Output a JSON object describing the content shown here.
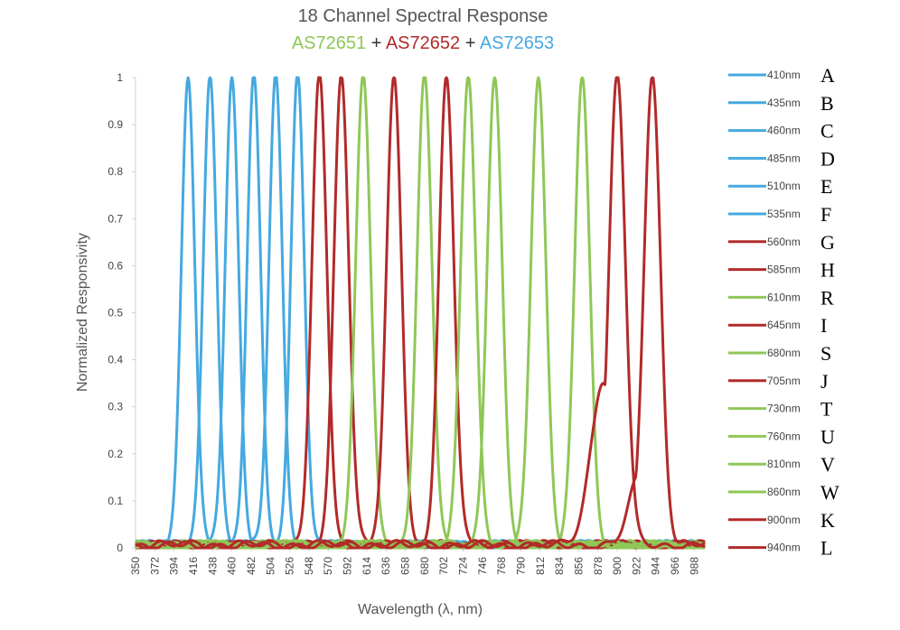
{
  "chart_data": {
    "type": "line",
    "title": "18 Channel Spectral Response",
    "subtitle_parts": [
      {
        "text": "AS72651",
        "color": "#8FC757"
      },
      {
        "text": " + ",
        "color": "#333333"
      },
      {
        "text": "AS72652",
        "color": "#B22A2A"
      },
      {
        "text": " + ",
        "color": "#333333"
      },
      {
        "text": "AS72653",
        "color": "#45A9E0"
      }
    ],
    "xlabel": "Wavelength (λ, nm)",
    "ylabel": "Normalized Responsivity",
    "xlim": [
      350,
      1000
    ],
    "ylim": [
      0,
      1
    ],
    "x_ticks": [
      "350",
      "372",
      "394",
      "416",
      "438",
      "460",
      "482",
      "504",
      "526",
      "548",
      "570",
      "592",
      "614",
      "636",
      "658",
      "680",
      "702",
      "724",
      "746",
      "768",
      "790",
      "812",
      "834",
      "856",
      "878",
      "900",
      "922",
      "944",
      "966",
      "988"
    ],
    "y_ticks": [
      "0",
      "0.1",
      "0.2",
      "0.3",
      "0.4",
      "0.5",
      "0.6",
      "0.7",
      "0.8",
      "0.9",
      "1"
    ],
    "grid": false,
    "legend_position": "right",
    "colors": {
      "AS72651": "#8FC757",
      "AS72652": "#B22A2A",
      "AS72653": "#45A9E0"
    },
    "series": [
      {
        "name": "410nm",
        "letter": "A",
        "sensor": "AS72653",
        "peak": 410,
        "fwhm": 18,
        "shoulder": null
      },
      {
        "name": "435nm",
        "letter": "B",
        "sensor": "AS72653",
        "peak": 435,
        "fwhm": 18,
        "shoulder": null
      },
      {
        "name": "460nm",
        "letter": "C",
        "sensor": "AS72653",
        "peak": 460,
        "fwhm": 18,
        "shoulder": null
      },
      {
        "name": "485nm",
        "letter": "D",
        "sensor": "AS72653",
        "peak": 485,
        "fwhm": 18,
        "shoulder": null
      },
      {
        "name": "510nm",
        "letter": "E",
        "sensor": "AS72653",
        "peak": 510,
        "fwhm": 18,
        "shoulder": null
      },
      {
        "name": "535nm",
        "letter": "F",
        "sensor": "AS72653",
        "peak": 535,
        "fwhm": 18,
        "shoulder": null
      },
      {
        "name": "560nm",
        "letter": "G",
        "sensor": "AS72652",
        "peak": 560,
        "fwhm": 20,
        "shoulder": null
      },
      {
        "name": "585nm",
        "letter": "H",
        "sensor": "AS72652",
        "peak": 585,
        "fwhm": 20,
        "shoulder": null
      },
      {
        "name": "610nm",
        "letter": "R",
        "sensor": "AS72651",
        "peak": 610,
        "fwhm": 20,
        "shoulder": null
      },
      {
        "name": "645nm",
        "letter": "I",
        "sensor": "AS72652",
        "peak": 645,
        "fwhm": 20,
        "shoulder": null
      },
      {
        "name": "680nm",
        "letter": "S",
        "sensor": "AS72651",
        "peak": 680,
        "fwhm": 20,
        "shoulder": null
      },
      {
        "name": "705nm",
        "letter": "J",
        "sensor": "AS72652",
        "peak": 705,
        "fwhm": 20,
        "shoulder": null
      },
      {
        "name": "730nm",
        "letter": "T",
        "sensor": "AS72651",
        "peak": 730,
        "fwhm": 20,
        "shoulder": null
      },
      {
        "name": "760nm",
        "letter": "U",
        "sensor": "AS72651",
        "peak": 760,
        "fwhm": 20,
        "shoulder": null
      },
      {
        "name": "810nm",
        "letter": "V",
        "sensor": "AS72651",
        "peak": 810,
        "fwhm": 20,
        "shoulder": null
      },
      {
        "name": "860nm",
        "letter": "W",
        "sensor": "AS72651",
        "peak": 860,
        "fwhm": 20,
        "shoulder": null
      },
      {
        "name": "900nm",
        "letter": "K",
        "sensor": "AS72652",
        "peak": 900,
        "fwhm": 22,
        "shoulder": {
          "center": 884,
          "width": 14,
          "amp": 0.35
        }
      },
      {
        "name": "940nm",
        "letter": "L",
        "sensor": "AS72652",
        "peak": 940,
        "fwhm": 22,
        "shoulder": {
          "center": 926,
          "width": 12,
          "amp": 0.15
        }
      }
    ]
  }
}
